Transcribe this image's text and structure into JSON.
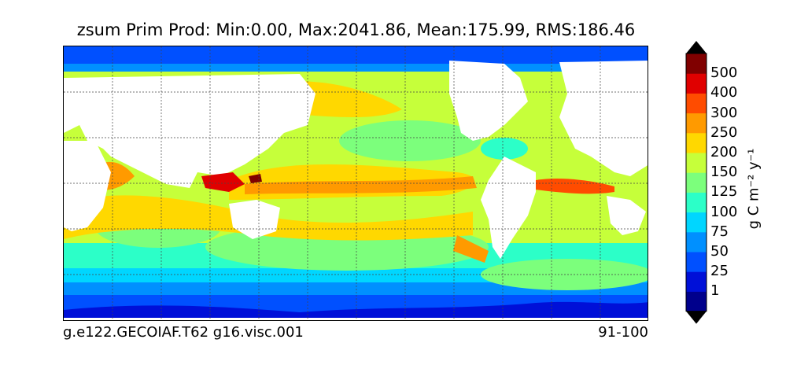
{
  "title": "zsum Prim Prod: Min:0.00, Max:2041.86, Mean:175.99, RMS:186.46",
  "footer": {
    "left": "g.e122.GECOIAF.T62 g16.visc.001",
    "right": "91-100"
  },
  "colorbar": {
    "unit": "g C m⁻² y⁻¹",
    "levels": [
      "1",
      "25",
      "50",
      "75",
      "100",
      "125",
      "150",
      "200",
      "250",
      "300",
      "400",
      "500"
    ],
    "colors": [
      "#00008c",
      "#0010d8",
      "#0050ff",
      "#0090ff",
      "#00d6ff",
      "#2cffc8",
      "#7cff7c",
      "#c6ff3a",
      "#ffd800",
      "#ff9a00",
      "#ff4c00",
      "#e00000",
      "#800000"
    ]
  },
  "map": {
    "grid": true,
    "land_color": "#ffffff",
    "ocean_base_color": "#c6ff3a"
  }
}
